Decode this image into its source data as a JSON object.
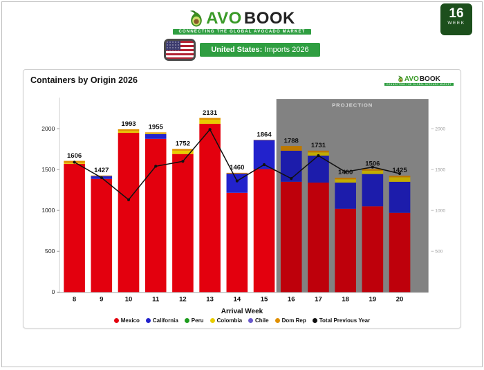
{
  "header": {
    "week_number": "16",
    "week_label": "WEEK",
    "logo": {
      "avo": "AVO",
      "book": "BOOK",
      "tagline": "CONNECTING THE GLOBAL AVOCADO MARKET"
    },
    "banner": {
      "bold": "United States:",
      "rest": " Imports 2026"
    }
  },
  "card": {
    "title": "Containers by Origin 2026",
    "logo": {
      "avo": "AVO",
      "book": "BOOK",
      "tagline": "CONNECTING THE GLOBAL AVOCADO MARKET"
    }
  },
  "chart_data": {
    "type": "bar",
    "stacked": true,
    "title": "Containers by Origin 2026",
    "xlabel": "Arrival Week",
    "categories": [
      8,
      9,
      10,
      11,
      12,
      13,
      14,
      15,
      16,
      17,
      18,
      19,
      20
    ],
    "totals": [
      1606,
      1427,
      1993,
      1955,
      1752,
      2131,
      1460,
      1864,
      1788,
      1731,
      1400,
      1506,
      1425
    ],
    "series": [
      {
        "name": "Mexico",
        "color": "#e3000e",
        "values": [
          1570,
          1385,
          1950,
          1875,
          1690,
          2060,
          1215,
          1505,
          1350,
          1340,
          1020,
          1050,
          970
        ]
      },
      {
        "name": "California",
        "color": "#2222cc",
        "values": [
          0,
          35,
          0,
          60,
          0,
          0,
          235,
          355,
          380,
          330,
          320,
          395,
          380
        ]
      },
      {
        "name": "Peru",
        "color": "#1e9c1e",
        "values": [
          0,
          0,
          0,
          0,
          0,
          0,
          0,
          0,
          0,
          0,
          0,
          0,
          0
        ]
      },
      {
        "name": "Colombia",
        "color": "#e8cd00",
        "values": [
          10,
          0,
          20,
          10,
          40,
          50,
          0,
          0,
          0,
          40,
          40,
          40,
          55
        ]
      },
      {
        "name": "Chile",
        "color": "#6a5acd",
        "values": [
          0,
          0,
          0,
          0,
          0,
          0,
          0,
          0,
          0,
          0,
          0,
          0,
          0
        ]
      },
      {
        "name": "Dom Rep",
        "color": "#e09000",
        "values": [
          26,
          7,
          23,
          10,
          22,
          21,
          10,
          4,
          58,
          21,
          20,
          21,
          20
        ]
      }
    ],
    "line_series": {
      "name": "Total Previous Year",
      "color": "#111111",
      "values": [
        1590,
        1400,
        1130,
        1540,
        1600,
        1990,
        1360,
        1560,
        1390,
        1670,
        1470,
        1530,
        1450
      ]
    },
    "projection": {
      "label": "PROJECTION",
      "start_week": 16,
      "end_week": 20
    },
    "y_ticks_left": [
      0,
      500,
      1000,
      1500,
      2000
    ],
    "y_ticks_right": [
      500,
      1000,
      1500,
      2000
    ],
    "ylim": [
      0,
      2250
    ],
    "grid": false,
    "legend_position": "bottom",
    "legend": [
      {
        "name": "Mexico",
        "color": "#e3000e"
      },
      {
        "name": "California",
        "color": "#2222cc"
      },
      {
        "name": "Peru",
        "color": "#1e9c1e"
      },
      {
        "name": "Colombia",
        "color": "#e8cd00"
      },
      {
        "name": "Chile",
        "color": "#6a5acd"
      },
      {
        "name": "Dom Rep",
        "color": "#e09000"
      },
      {
        "name": "Total Previous Year",
        "color": "#111111"
      }
    ],
    "colors": {
      "projection_bg": "#9b9b9b",
      "projection_text": "#ffffff",
      "axis": "#999999",
      "right_axis_text": "#9a9a9a"
    }
  }
}
